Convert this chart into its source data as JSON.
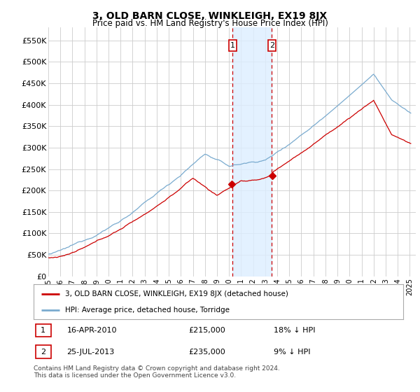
{
  "title": "3, OLD BARN CLOSE, WINKLEIGH, EX19 8JX",
  "subtitle": "Price paid vs. HM Land Registry's House Price Index (HPI)",
  "ylabel_ticks": [
    "£0",
    "£50K",
    "£100K",
    "£150K",
    "£200K",
    "£250K",
    "£300K",
    "£350K",
    "£400K",
    "£450K",
    "£500K",
    "£550K"
  ],
  "ytick_values": [
    0,
    50000,
    100000,
    150000,
    200000,
    250000,
    300000,
    350000,
    400000,
    450000,
    500000,
    550000
  ],
  "ylim": [
    0,
    580000
  ],
  "xmin": 1995.0,
  "xmax": 2025.5,
  "sale1_date": 2010.29,
  "sale1_price": 215000,
  "sale1_label": "1",
  "sale2_date": 2013.56,
  "sale2_price": 235000,
  "sale2_label": "2",
  "legend_line1": "3, OLD BARN CLOSE, WINKLEIGH, EX19 8JX (detached house)",
  "legend_line2": "HPI: Average price, detached house, Torridge",
  "table_row1": [
    "1",
    "16-APR-2010",
    "£215,000",
    "18% ↓ HPI"
  ],
  "table_row2": [
    "2",
    "25-JUL-2013",
    "£235,000",
    "9% ↓ HPI"
  ],
  "footnote": "Contains HM Land Registry data © Crown copyright and database right 2024.\nThis data is licensed under the Open Government Licence v3.0.",
  "line_color_red": "#cc0000",
  "line_color_blue": "#7aabcf",
  "shade_color": "#ddeeff",
  "grid_color": "#cccccc",
  "bg_color": "#ffffff"
}
